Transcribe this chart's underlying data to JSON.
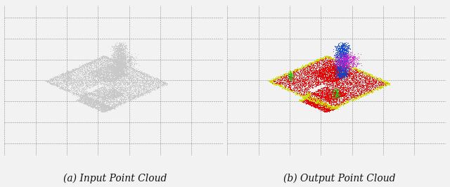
{
  "figure_width": 6.4,
  "figure_height": 2.66,
  "dpi": 100,
  "panel_bg": "#1e1e1e",
  "grid_color": "#444444",
  "outer_bg": "#f2f2f2",
  "left_title": "(a) Input Point Cloud",
  "right_title": "(b) Output Point Cloud",
  "title_fontsize": 10,
  "title_color": "#111111",
  "white_color": "#c8c8c8",
  "red_color": "#dd0000",
  "yellow_color": "#ccdd00",
  "blue_color": "#1144cc",
  "magenta_color": "#cc22cc",
  "green_color": "#22cc22"
}
